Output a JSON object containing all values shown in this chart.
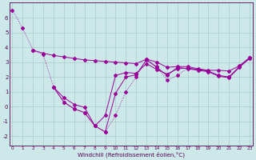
{
  "background_color": "#cce8e8",
  "grid_color": "#aacccc",
  "line_color": "#990099",
  "x_ticks": [
    0,
    1,
    2,
    3,
    4,
    5,
    6,
    7,
    8,
    9,
    10,
    11,
    12,
    13,
    14,
    15,
    16,
    17,
    18,
    19,
    20,
    21,
    22,
    23
  ],
  "y_ticks": [
    -2,
    -1,
    0,
    1,
    2,
    3,
    4,
    5,
    6
  ],
  "xlim": [
    -0.3,
    23.3
  ],
  "ylim": [
    -2.6,
    7.0
  ],
  "xlabel": "Windchill (Refroidissement éolien,°C)",
  "series_dotted": {
    "x": [
      0,
      1,
      2,
      3,
      4,
      5,
      6,
      7,
      8,
      9,
      10,
      11,
      12,
      13,
      14,
      15,
      16,
      17,
      18,
      19,
      20,
      21,
      22,
      23
    ],
    "y": [
      6.5,
      5.3,
      3.8,
      3.5,
      1.3,
      0.3,
      -0.15,
      -0.4,
      -1.3,
      -1.7,
      -0.6,
      1.0,
      2.0,
      3.2,
      2.7,
      1.8,
      2.1,
      2.6,
      2.5,
      2.4,
      2.1,
      2.0,
      2.7,
      3.3
    ]
  },
  "series_top": {
    "x": [
      2,
      3,
      4,
      5,
      6,
      7,
      8,
      9,
      10,
      11,
      12,
      13,
      14,
      15,
      16,
      17,
      18,
      19,
      20,
      21,
      22,
      23
    ],
    "y": [
      3.8,
      3.6,
      3.45,
      3.35,
      3.25,
      3.15,
      3.1,
      3.05,
      3.0,
      2.95,
      2.9,
      3.2,
      3.0,
      2.65,
      2.7,
      2.7,
      2.55,
      2.45,
      2.45,
      2.4,
      2.75,
      3.3
    ]
  },
  "series_lower": {
    "x": [
      4,
      5,
      6,
      7,
      8,
      9,
      10,
      11,
      12,
      13,
      14,
      15,
      16,
      17,
      18,
      19,
      20,
      21,
      22,
      23
    ],
    "y": [
      1.3,
      0.6,
      0.15,
      -0.05,
      -1.3,
      -0.6,
      2.1,
      2.3,
      2.25,
      2.9,
      2.5,
      2.2,
      2.55,
      2.6,
      2.5,
      2.4,
      2.1,
      2.0,
      2.7,
      3.3
    ]
  },
  "series_mid": {
    "x": [
      4,
      5,
      6,
      7,
      8,
      9,
      10,
      11,
      12,
      13,
      14,
      15,
      16,
      17,
      18,
      19,
      20,
      21,
      22,
      23
    ],
    "y": [
      1.3,
      0.3,
      -0.15,
      -0.4,
      -1.3,
      -1.7,
      0.9,
      2.0,
      2.15,
      3.15,
      2.65,
      2.1,
      2.65,
      2.55,
      2.45,
      2.35,
      2.05,
      1.95,
      2.65,
      3.25
    ]
  }
}
